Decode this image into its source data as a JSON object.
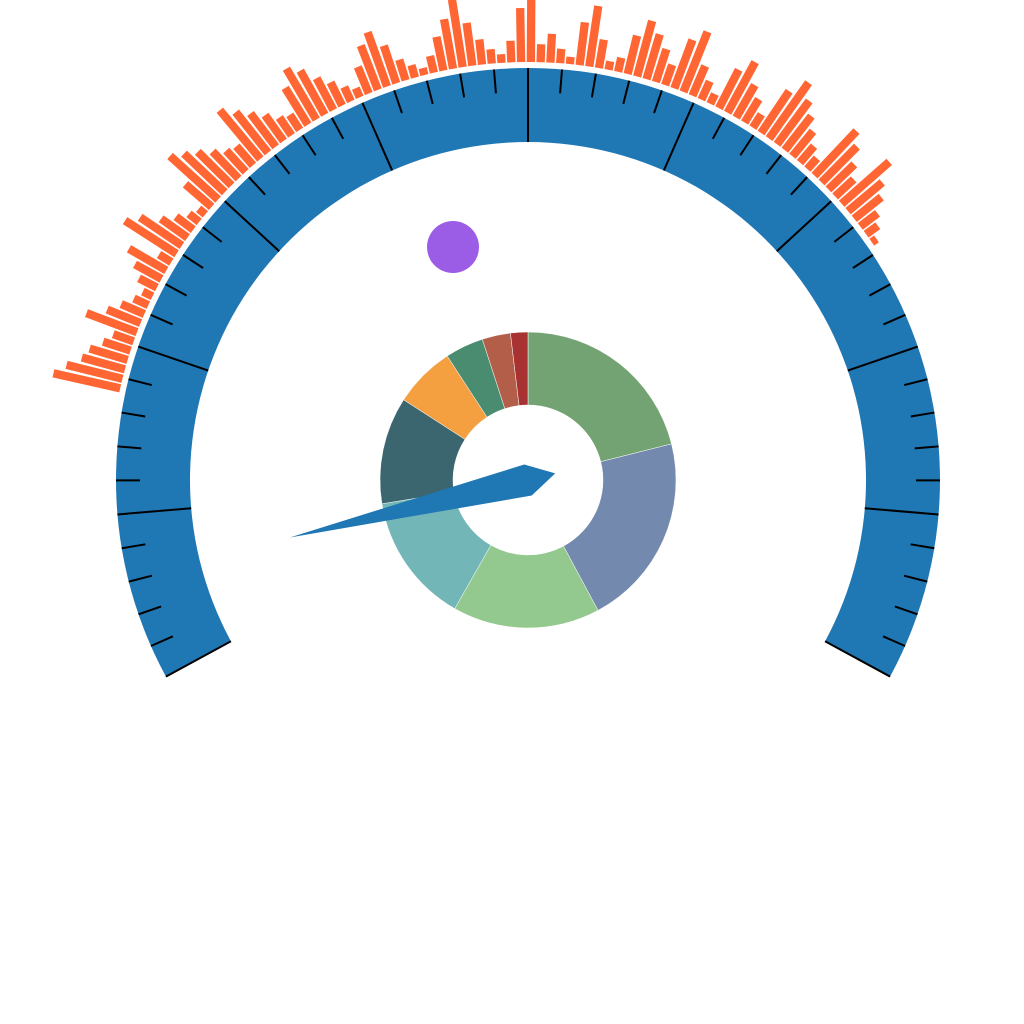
{
  "chart_data": [
    {
      "type": "gauge",
      "color": "#1f77b4",
      "value": 6.3,
      "ylim": [
        0,
        100
      ],
      "yticks": [
        0,
        10,
        20,
        30,
        40,
        50,
        60,
        70,
        80,
        90,
        100
      ],
      "minor_ticks": [
        2,
        4,
        6,
        8,
        12,
        14,
        16,
        18,
        22,
        24,
        26,
        28,
        32,
        34,
        36,
        38,
        42,
        44,
        46,
        48,
        52,
        54,
        56,
        58,
        62,
        64,
        66,
        68,
        72,
        74,
        76,
        78,
        82,
        84,
        86,
        88,
        92,
        94,
        96,
        98
      ]
    },
    {
      "type": "radial_bar",
      "color": "#ff6633",
      "ylim": [
        0,
        100
      ],
      "values": [
        95,
        80,
        62,
        55,
        40,
        30,
        75,
        50,
        35,
        22,
        15,
        28,
        42,
        60,
        20,
        85,
        70,
        45,
        30,
        18,
        12,
        48,
        90,
        78,
        66,
        52,
        40,
        35,
        88,
        72,
        58,
        44,
        30,
        25,
        60,
        82,
        70,
        50,
        36,
        22,
        14,
        40,
        66,
        80,
        55,
        30,
        18,
        10,
        24,
        48,
        70,
        95,
        60,
        35,
        20,
        12,
        30,
        75,
        88,
        25,
        40,
        20,
        10,
        60,
        85,
        40,
        12,
        20,
        55,
        80,
        65,
        48,
        30,
        72,
        90,
        45,
        28,
        15,
        60,
        80,
        52,
        38,
        22,
        70,
        95,
        75,
        60,
        45,
        30,
        20,
        85,
        70,
        50,
        35,
        88,
        62,
        48,
        30,
        20,
        8
      ]
    },
    {
      "type": "pie",
      "donut": true,
      "values": [
        21.1,
        21.1,
        16.1,
        14.2,
        11.7,
        6.7,
        4.2,
        3.1,
        1.9
      ],
      "colors": [
        "#74a373",
        "#7389ad",
        "#93c98e",
        "#72b6b8",
        "#3b6670",
        "#f4a041",
        "#4a8c70",
        "#b35e48",
        "#a83232"
      ]
    }
  ]
}
